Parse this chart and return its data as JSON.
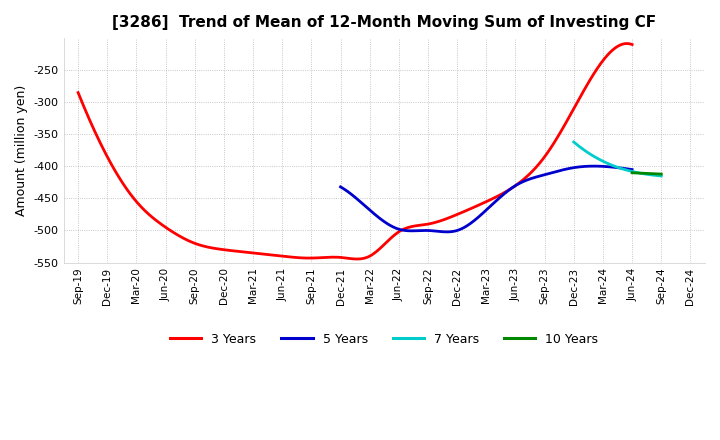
{
  "title": "[3286]  Trend of Mean of 12-Month Moving Sum of Investing CF",
  "ylabel": "Amount (million yen)",
  "ylim": [
    -550,
    -200
  ],
  "yticks": [
    -550,
    -500,
    -450,
    -400,
    -350,
    -300,
    -250
  ],
  "background_color": "#ffffff",
  "grid_color": "#999999",
  "series": {
    "3years": {
      "color": "#ff0000",
      "label": "3 Years",
      "x": [
        "Sep-19",
        "Dec-19",
        "Mar-20",
        "Jun-20",
        "Sep-20",
        "Dec-20",
        "Mar-21",
        "Jun-21",
        "Sep-21",
        "Dec-21",
        "Mar-22",
        "Jun-22",
        "Sep-22",
        "Dec-22",
        "Mar-23",
        "Jun-23",
        "Sep-23",
        "Dec-23",
        "Mar-24",
        "Jun-24"
      ],
      "y": [
        -285,
        -385,
        -455,
        -495,
        -520,
        -530,
        -535,
        -540,
        -543,
        -542,
        -540,
        -502,
        -490,
        -475,
        -455,
        -430,
        -385,
        -310,
        -235,
        -210
      ]
    },
    "5years": {
      "color": "#0000cc",
      "label": "5 Years",
      "x": [
        "Dec-21",
        "Mar-22",
        "Jun-22",
        "Sep-22",
        "Dec-22",
        "Mar-23",
        "Jun-23",
        "Sep-23",
        "Dec-23",
        "Mar-24",
        "Jun-24"
      ],
      "y": [
        -432,
        -468,
        -498,
        -500,
        -500,
        -468,
        -430,
        -413,
        -402,
        -400,
        -405
      ]
    },
    "7years": {
      "color": "#00cccc",
      "label": "7 Years",
      "x": [
        "Dec-23",
        "Mar-24",
        "Jun-24",
        "Sep-24"
      ],
      "y": [
        -362,
        -392,
        -408,
        -415
      ]
    },
    "10years": {
      "color": "#008800",
      "label": "10 Years",
      "x": [
        "Jun-24",
        "Sep-24"
      ],
      "y": [
        -410,
        -412
      ]
    }
  },
  "xtick_labels": [
    "Sep-19",
    "Dec-19",
    "Mar-20",
    "Jun-20",
    "Sep-20",
    "Dec-20",
    "Mar-21",
    "Jun-21",
    "Sep-21",
    "Dec-21",
    "Mar-22",
    "Jun-22",
    "Sep-22",
    "Dec-22",
    "Mar-23",
    "Jun-23",
    "Sep-23",
    "Dec-23",
    "Mar-24",
    "Jun-24",
    "Sep-24",
    "Dec-24"
  ],
  "legend_labels": [
    "3 Years",
    "5 Years",
    "7 Years",
    "10 Years"
  ],
  "legend_colors": [
    "#ff0000",
    "#0000cc",
    "#00cccc",
    "#008800"
  ]
}
